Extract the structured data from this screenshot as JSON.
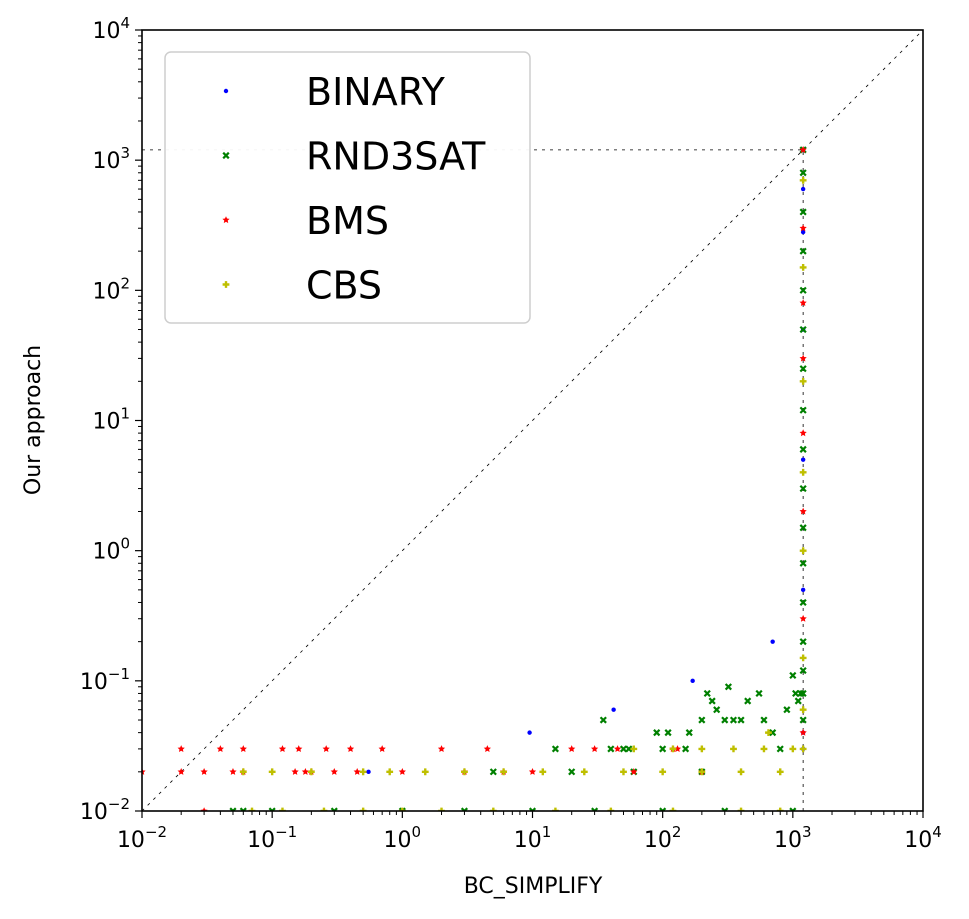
{
  "chart_data": {
    "type": "scatter",
    "title": "",
    "xlabel": "BC_SIMPLIFY",
    "ylabel": "Our approach",
    "xscale": "log",
    "yscale": "log",
    "xlim": [
      0.01,
      10000
    ],
    "ylim": [
      0.01,
      10000
    ],
    "x_ticks": [
      {
        "value": 0.01,
        "base": "10",
        "exp": "−2"
      },
      {
        "value": 0.1,
        "base": "10",
        "exp": "−1"
      },
      {
        "value": 1,
        "base": "10",
        "exp": "0"
      },
      {
        "value": 10,
        "base": "10",
        "exp": "1"
      },
      {
        "value": 100,
        "base": "10",
        "exp": "2"
      },
      {
        "value": 1000,
        "base": "10",
        "exp": "3"
      },
      {
        "value": 10000,
        "base": "10",
        "exp": "4"
      }
    ],
    "y_ticks": [
      {
        "value": 0.01,
        "base": "10",
        "exp": "−2"
      },
      {
        "value": 0.1,
        "base": "10",
        "exp": "−1"
      },
      {
        "value": 1,
        "base": "10",
        "exp": "0"
      },
      {
        "value": 10,
        "base": "10",
        "exp": "1"
      },
      {
        "value": 100,
        "base": "10",
        "exp": "2"
      },
      {
        "value": 1000,
        "base": "10",
        "exp": "3"
      },
      {
        "value": 10000,
        "base": "10",
        "exp": "4"
      }
    ],
    "timeout": 1200,
    "diagonal": true,
    "grid": false,
    "legend_position": "upper-left",
    "series": [
      {
        "name": "BINARY",
        "color": "#0000ff",
        "marker": "dot",
        "points": [
          [
            9.5,
            0.04
          ],
          [
            42,
            0.06
          ],
          [
            170,
            0.1
          ],
          [
            700,
            0.2
          ],
          [
            0.55,
            0.02
          ],
          [
            1200,
            280
          ],
          [
            1200,
            600
          ],
          [
            1200,
            1200
          ],
          [
            1200,
            50
          ],
          [
            1200,
            5
          ],
          [
            1200,
            0.5
          ],
          [
            1200,
            0.04
          ],
          [
            1200,
            0.03
          ]
        ]
      },
      {
        "name": "RND3SAT",
        "color": "#008000",
        "marker": "x",
        "points": [
          [
            15,
            0.03
          ],
          [
            35,
            0.05
          ],
          [
            40,
            0.03
          ],
          [
            50,
            0.03
          ],
          [
            55,
            0.03
          ],
          [
            90,
            0.04
          ],
          [
            100,
            0.03
          ],
          [
            110,
            0.04
          ],
          [
            150,
            0.03
          ],
          [
            160,
            0.04
          ],
          [
            200,
            0.05
          ],
          [
            220,
            0.08
          ],
          [
            240,
            0.07
          ],
          [
            260,
            0.06
          ],
          [
            300,
            0.05
          ],
          [
            320,
            0.09
          ],
          [
            350,
            0.05
          ],
          [
            400,
            0.05
          ],
          [
            450,
            0.07
          ],
          [
            550,
            0.08
          ],
          [
            600,
            0.05
          ],
          [
            700,
            0.04
          ],
          [
            800,
            0.03
          ],
          [
            900,
            0.06
          ],
          [
            1000,
            0.11
          ],
          [
            1050,
            0.08
          ],
          [
            1100,
            0.07
          ],
          [
            1150,
            0.08
          ],
          [
            0.05,
            0.01
          ],
          [
            0.06,
            0.01
          ],
          [
            0.1,
            0.01
          ],
          [
            0.3,
            0.01
          ],
          [
            1.0,
            0.01
          ],
          [
            3.0,
            0.01
          ],
          [
            10,
            0.01
          ],
          [
            30,
            0.01
          ],
          [
            100,
            0.01
          ],
          [
            300,
            0.01
          ],
          [
            1000,
            0.01
          ],
          [
            5,
            0.02
          ],
          [
            20,
            0.02
          ],
          [
            60,
            0.02
          ],
          [
            200,
            0.02
          ],
          [
            1200,
            0.05
          ],
          [
            1200,
            0.08
          ],
          [
            1200,
            0.12
          ],
          [
            1200,
            0.2
          ],
          [
            1200,
            0.4
          ],
          [
            1200,
            0.8
          ],
          [
            1200,
            1.5
          ],
          [
            1200,
            3
          ],
          [
            1200,
            6
          ],
          [
            1200,
            12
          ],
          [
            1200,
            25
          ],
          [
            1200,
            50
          ],
          [
            1200,
            100
          ],
          [
            1200,
            200
          ],
          [
            1200,
            400
          ],
          [
            1200,
            800
          ],
          [
            1200,
            1200
          ]
        ]
      },
      {
        "name": "BMS",
        "color": "#ff0000",
        "marker": "star",
        "points": [
          [
            0.01,
            0.02
          ],
          [
            0.02,
            0.03
          ],
          [
            0.02,
            0.02
          ],
          [
            0.03,
            0.02
          ],
          [
            0.03,
            0.01
          ],
          [
            0.04,
            0.03
          ],
          [
            0.05,
            0.02
          ],
          [
            0.06,
            0.03
          ],
          [
            0.06,
            0.02
          ],
          [
            0.12,
            0.03
          ],
          [
            0.15,
            0.02
          ],
          [
            0.16,
            0.03
          ],
          [
            0.18,
            0.02
          ],
          [
            0.2,
            0.02
          ],
          [
            0.26,
            0.03
          ],
          [
            0.3,
            0.02
          ],
          [
            0.4,
            0.03
          ],
          [
            0.45,
            0.02
          ],
          [
            0.7,
            0.03
          ],
          [
            1.0,
            0.02
          ],
          [
            2.0,
            0.03
          ],
          [
            3.0,
            0.02
          ],
          [
            4.5,
            0.03
          ],
          [
            6,
            0.02
          ],
          [
            10,
            0.02
          ],
          [
            20,
            0.03
          ],
          [
            30,
            0.03
          ],
          [
            45,
            0.03
          ],
          [
            60,
            0.02
          ],
          [
            120,
            0.03
          ],
          [
            130,
            0.03
          ],
          [
            200,
            0.02
          ],
          [
            1200,
            0.04
          ],
          [
            1200,
            0.3
          ],
          [
            1200,
            2
          ],
          [
            1200,
            8
          ],
          [
            1200,
            30
          ],
          [
            1200,
            80
          ],
          [
            1200,
            300
          ],
          [
            1200,
            1200
          ]
        ]
      },
      {
        "name": "CBS",
        "color": "#bfbf00",
        "marker": "plus",
        "points": [
          [
            0.06,
            0.02
          ],
          [
            0.1,
            0.02
          ],
          [
            0.2,
            0.02
          ],
          [
            0.5,
            0.02
          ],
          [
            0.8,
            0.02
          ],
          [
            1.5,
            0.02
          ],
          [
            3,
            0.02
          ],
          [
            6,
            0.02
          ],
          [
            12,
            0.02
          ],
          [
            25,
            0.02
          ],
          [
            50,
            0.02
          ],
          [
            100,
            0.02
          ],
          [
            200,
            0.02
          ],
          [
            400,
            0.02
          ],
          [
            800,
            0.02
          ],
          [
            0.07,
            0.01
          ],
          [
            0.12,
            0.01
          ],
          [
            0.25,
            0.01
          ],
          [
            0.5,
            0.01
          ],
          [
            1,
            0.01
          ],
          [
            2,
            0.01
          ],
          [
            5,
            0.01
          ],
          [
            15,
            0.01
          ],
          [
            40,
            0.01
          ],
          [
            120,
            0.01
          ],
          [
            400,
            0.01
          ],
          [
            800,
            0.01
          ],
          [
            60,
            0.03
          ],
          [
            120,
            0.03
          ],
          [
            200,
            0.03
          ],
          [
            350,
            0.03
          ],
          [
            600,
            0.03
          ],
          [
            1000,
            0.03
          ],
          [
            650,
            0.04
          ],
          [
            1200,
            0.03
          ],
          [
            1200,
            0.06
          ],
          [
            1200,
            0.15
          ],
          [
            1200,
            1
          ],
          [
            1200,
            4
          ],
          [
            1200,
            20
          ],
          [
            1200,
            150
          ],
          [
            1200,
            700
          ]
        ]
      }
    ]
  }
}
